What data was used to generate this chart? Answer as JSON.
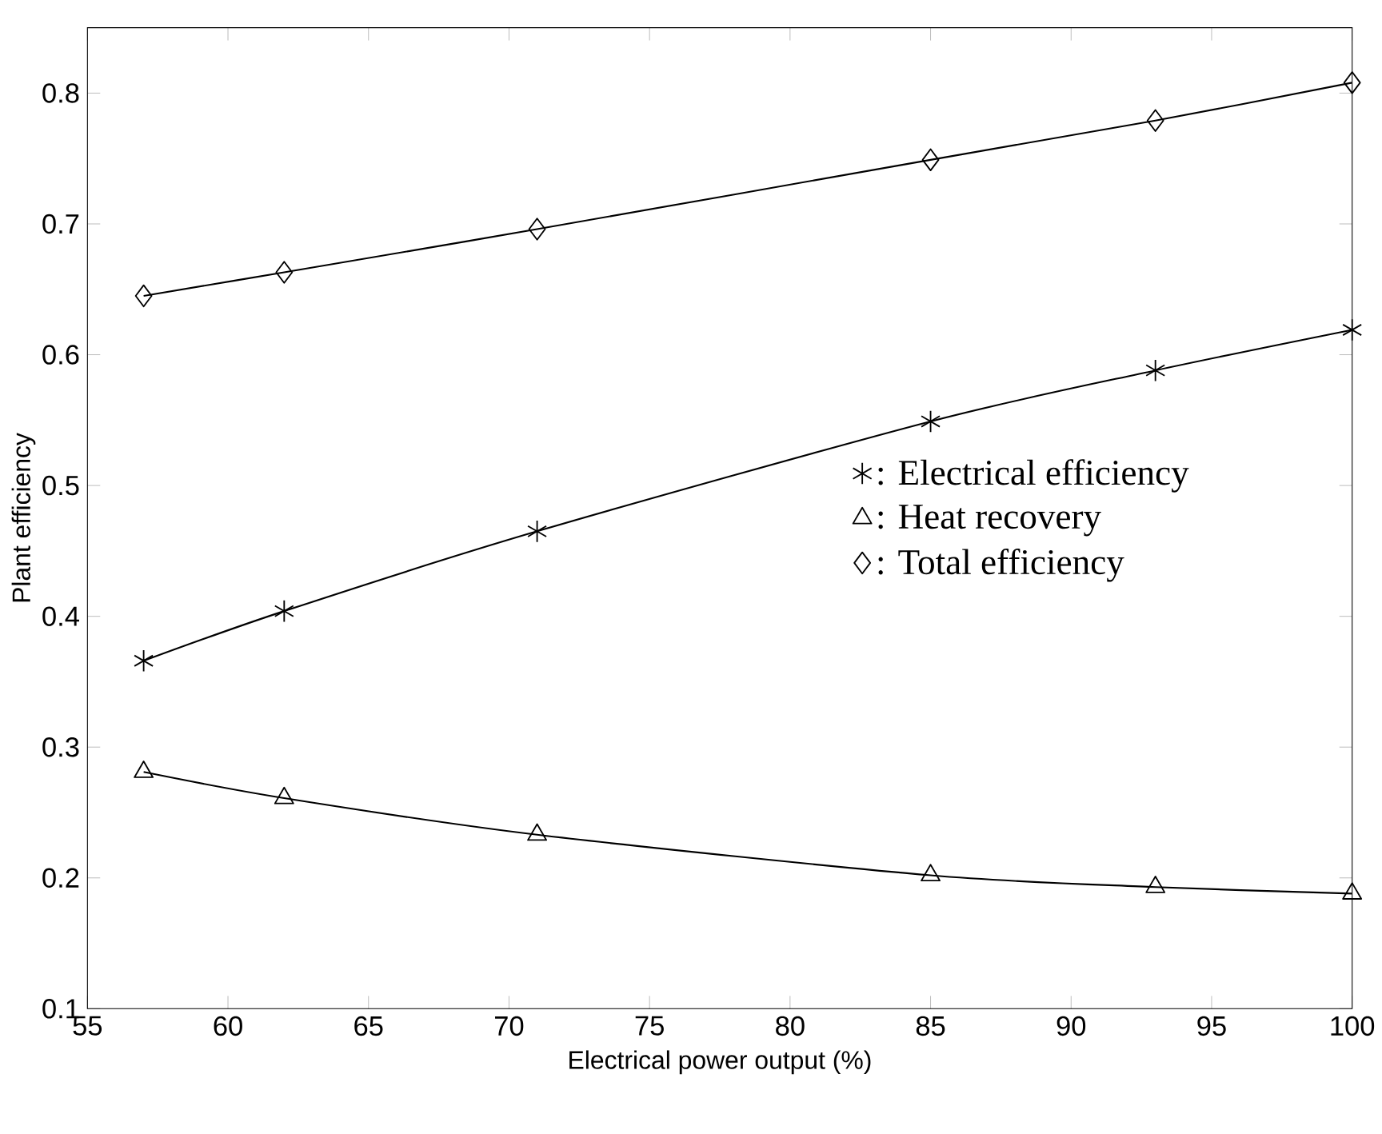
{
  "chart_data": {
    "type": "line",
    "xlabel": "Electrical power output (%)",
    "ylabel": "Plant efficiency",
    "x": [
      57,
      62,
      71,
      85,
      93,
      100
    ],
    "series": [
      {
        "name": ": Electrical efficiency",
        "color": "#000000",
        "marker": "cross",
        "values": [
          0.366,
          0.404,
          0.465,
          0.549,
          0.588,
          0.619
        ]
      },
      {
        "name": ": Heat recovery",
        "color": "#000000",
        "marker": "triangle",
        "values": [
          0.281,
          0.261,
          0.233,
          0.202,
          0.193,
          0.188
        ]
      },
      {
        "name": ": Total efficiency",
        "color": "#000000",
        "marker": "diamond",
        "values": [
          0.645,
          0.663,
          0.696,
          0.749,
          0.779,
          0.808
        ]
      }
    ],
    "xlim": [
      55,
      100
    ],
    "xticks": [
      55,
      60,
      65,
      70,
      75,
      80,
      85,
      90,
      95,
      100
    ],
    "ylim": [
      0.1,
      0.85
    ],
    "yticks": [
      0.1,
      0.2,
      0.3,
      0.4,
      0.5,
      0.6,
      0.7,
      0.8
    ],
    "grid": false,
    "legend": "center",
    "line_style": "solid"
  }
}
